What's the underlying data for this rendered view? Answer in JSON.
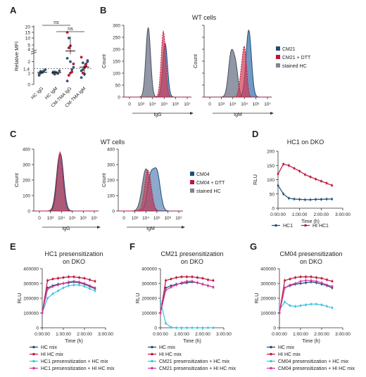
{
  "panels": {
    "A": {
      "letter": "A",
      "ylabel": "Relative MFI",
      "yticks": [
        "0",
        "1",
        "2",
        "4",
        "5",
        "10",
        "15",
        "20"
      ],
      "ref_label": "1.4",
      "cats": [
        "HC IgG",
        "HC IgM",
        "CM-TMA IgG",
        "CM-TMA IgM"
      ],
      "ns1": "ns",
      "ns2": "ns",
      "points": [
        [
          [
            0.9,
            false
          ],
          [
            1.0,
            false
          ],
          [
            1.1,
            false
          ],
          [
            1.2,
            false
          ],
          [
            1.3,
            false
          ],
          [
            0.8,
            false
          ],
          [
            1.15,
            false
          ],
          [
            1.05,
            false
          ]
        ],
        [
          [
            1.0,
            false
          ],
          [
            1.1,
            false
          ],
          [
            1.05,
            false
          ],
          [
            0.95,
            false
          ],
          [
            1.2,
            false
          ],
          [
            1.1,
            false
          ],
          [
            0.9,
            false
          ]
        ],
        [
          [
            0.3,
            false
          ],
          [
            0.8,
            true
          ],
          [
            1.0,
            true
          ],
          [
            1.3,
            false
          ],
          [
            1.8,
            true
          ],
          [
            2.3,
            false
          ],
          [
            4.3,
            true
          ],
          [
            4.8,
            true
          ],
          [
            1.1,
            true
          ],
          [
            1.5,
            false
          ],
          [
            15.0,
            true
          ],
          [
            10.0,
            false
          ],
          [
            2.0,
            false
          ]
        ],
        [
          [
            0.6,
            false
          ],
          [
            1.0,
            true
          ],
          [
            1.5,
            true
          ],
          [
            1.8,
            true
          ],
          [
            2.1,
            false
          ],
          [
            2.4,
            true
          ],
          [
            1.3,
            false
          ],
          [
            0.9,
            false
          ],
          [
            1.6,
            true
          ],
          [
            2.0,
            false
          ],
          [
            1.2,
            false
          ],
          [
            1.9,
            false
          ]
        ]
      ]
    },
    "B": {
      "letter": "B",
      "title": "WT cells",
      "ylabel": "Count",
      "xl1": "IgG",
      "xl2": "IgM",
      "yticks": [
        "0",
        "50",
        "100",
        "150",
        "200",
        "250",
        "300"
      ],
      "legend": [
        "CM21",
        "CM21 + DTT",
        "stained HC"
      ]
    },
    "C": {
      "letter": "C",
      "title": "WT cells",
      "ylabel": "Count",
      "xl1": "IgG",
      "xl2": "IgM",
      "yticks": [
        "0",
        "100",
        "200",
        "300",
        "400"
      ],
      "legend": [
        "CM04",
        "CM04 + DTT",
        "stained HC"
      ]
    },
    "D": {
      "letter": "D",
      "title": "HC1 on DKO",
      "ylabel": "RLU",
      "xlabel": "Time (h)",
      "yticks": [
        "0",
        "50",
        "100",
        "150",
        "200"
      ],
      "xticks": [
        "0:00:00",
        "1:00:00",
        "2:00:00",
        "3:00:00"
      ],
      "legend": [
        "HC1",
        "HI HC1"
      ]
    },
    "E": {
      "letter": "E",
      "title1": "HC1 presensitization",
      "title2": "on DKO",
      "legend": [
        "HC mix",
        "HI HC mix",
        "HC1 presensitization + HC mix",
        "HC1 presensitization + HI HC mix"
      ]
    },
    "F": {
      "letter": "F",
      "title1": "CM21 presensitization",
      "title2": "on DKO",
      "legend": [
        "HC mix",
        "HI HC mix",
        "CM21 presensitization + HC mix",
        "CM21 presensitization + HI HC mix"
      ]
    },
    "G": {
      "letter": "G",
      "title1": "CM04 presensitization",
      "title2": "on DKO",
      "legend": [
        "HC mix",
        "HI HC mix",
        "CM04 presensitization + HC mix",
        "CM04 presensitization + HI HC mix"
      ]
    }
  },
  "ts": {
    "ylabel": "RLU",
    "xlabel": "Time (h)",
    "yticks": [
      "0",
      "100000",
      "200000",
      "300000",
      "400000"
    ],
    "xticks": [
      "0:00:00",
      "1:00:00",
      "2:00:00",
      "3:00:00"
    ]
  },
  "hist_xticks": [
    "0",
    "10³",
    "10⁴",
    "10⁵",
    "10⁶",
    "10⁷"
  ],
  "colors": {
    "blue": "#1f4e79",
    "red": "#c0143c",
    "cyan": "#3cc3e0",
    "magenta": "#d6339e",
    "grey": "#7e8594",
    "histblue": "#5b86b8",
    "histred": "#d23a52"
  },
  "chart_data": [
    {
      "panel": "A",
      "type": "scatter",
      "categories": [
        "HC IgG",
        "HC IgM",
        "CM-TMA IgG",
        "CM-TMA IgM"
      ],
      "ylabel": "Relative MFI",
      "reference_line": 1.4
    },
    {
      "panel": "D",
      "type": "line",
      "title": "HC1 on DKO",
      "xlabel": "Time (h)",
      "ylabel": "RLU",
      "ylim": [
        0,
        200
      ],
      "x": [
        0,
        0.25,
        0.5,
        0.75,
        1.0,
        1.25,
        1.5,
        1.75,
        2.0,
        2.25,
        2.5
      ],
      "series": [
        {
          "name": "HC1",
          "values": [
            80,
            50,
            35,
            32,
            31,
            30,
            30,
            31,
            31,
            32,
            32
          ]
        },
        {
          "name": "HI HC1",
          "values": [
            120,
            155,
            150,
            140,
            130,
            118,
            110,
            102,
            95,
            88,
            80
          ]
        }
      ]
    },
    {
      "panel": "E",
      "type": "line",
      "title": "HC1 presensitization on DKO",
      "xlabel": "Time (h)",
      "ylabel": "RLU",
      "ylim": [
        0,
        400000
      ],
      "x": [
        0,
        0.25,
        0.5,
        0.75,
        1.0,
        1.25,
        1.5,
        1.75,
        2.0,
        2.25,
        2.5
      ],
      "series": [
        {
          "name": "HC mix",
          "values": [
            100000,
            270000,
            285000,
            295000,
            300000,
            305000,
            310000,
            305000,
            295000,
            280000,
            265000
          ]
        },
        {
          "name": "HI HC mix",
          "values": [
            100000,
            320000,
            330000,
            335000,
            340000,
            345000,
            345000,
            340000,
            335000,
            325000,
            315000
          ]
        },
        {
          "name": "HC1 presensitization + HC mix",
          "values": [
            100000,
            200000,
            230000,
            250000,
            270000,
            285000,
            290000,
            290000,
            280000,
            265000,
            250000
          ]
        },
        {
          "name": "HC1 presensitization + HI HC mix",
          "values": [
            100000,
            260000,
            280000,
            290000,
            300000,
            310000,
            315000,
            310000,
            300000,
            285000,
            270000
          ]
        }
      ]
    },
    {
      "panel": "F",
      "type": "line",
      "title": "CM21 presensitization on DKO",
      "xlabel": "Time (h)",
      "ylabel": "RLU",
      "ylim": [
        0,
        400000
      ],
      "x": [
        0,
        0.25,
        0.5,
        0.75,
        1.0,
        1.25,
        1.5,
        1.75,
        2.0,
        2.25,
        2.5
      ],
      "series": [
        {
          "name": "HC mix",
          "values": [
            100000,
            270000,
            285000,
            295000,
            300000,
            305000,
            310000,
            305000,
            295000,
            285000,
            275000
          ]
        },
        {
          "name": "HI HC mix",
          "values": [
            100000,
            320000,
            330000,
            340000,
            345000,
            345000,
            345000,
            340000,
            335000,
            325000,
            320000
          ]
        },
        {
          "name": "CM21 presensitization + HC mix",
          "values": [
            180000,
            30000,
            3000,
            0,
            0,
            0,
            0,
            0,
            0,
            0,
            0
          ]
        },
        {
          "name": "CM21 presensitization + HI HC mix",
          "values": [
            100000,
            255000,
            275000,
            290000,
            305000,
            315000,
            315000,
            305000,
            295000,
            285000,
            275000
          ]
        }
      ]
    },
    {
      "panel": "G",
      "type": "line",
      "title": "CM04 presensitization on DKO",
      "xlabel": "Time (h)",
      "ylabel": "RLU",
      "ylim": [
        0,
        400000
      ],
      "x": [
        0,
        0.25,
        0.5,
        0.75,
        1.0,
        1.25,
        1.5,
        1.75,
        2.0,
        2.25,
        2.5
      ],
      "series": [
        {
          "name": "HC mix",
          "values": [
            100000,
            270000,
            285000,
            295000,
            300000,
            305000,
            310000,
            305000,
            295000,
            285000,
            270000
          ]
        },
        {
          "name": "HI HC mix",
          "values": [
            100000,
            320000,
            330000,
            340000,
            345000,
            345000,
            345000,
            340000,
            335000,
            325000,
            315000
          ]
        },
        {
          "name": "CM04 presensitization + HC mix",
          "values": [
            120000,
            175000,
            150000,
            145000,
            150000,
            155000,
            160000,
            160000,
            155000,
            145000,
            135000
          ]
        },
        {
          "name": "CM04 presensitization + HI HC mix",
          "values": [
            100000,
            270000,
            290000,
            300000,
            315000,
            320000,
            320000,
            315000,
            305000,
            290000,
            280000
          ]
        }
      ]
    }
  ]
}
